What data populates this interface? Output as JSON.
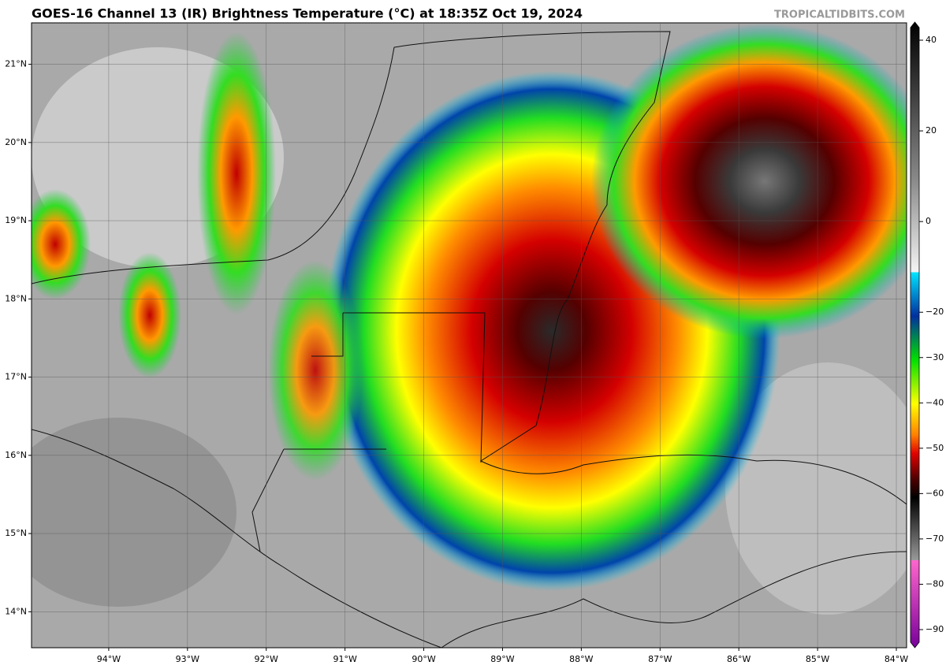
{
  "header": {
    "title": "GOES-16 Channel 13 (IR) Brightness Temperature (°C) at 18:35Z Oct 19, 2024",
    "credit": "TROPICALTIDBITS.COM"
  },
  "map": {
    "xlim": [
      -94.98,
      -83.87
    ],
    "ylim": [
      13.54,
      21.53
    ],
    "lat_labels": [
      {
        "value": 21,
        "label": "21°N"
      },
      {
        "value": 20,
        "label": "20°N"
      },
      {
        "value": 19,
        "label": "19°N"
      },
      {
        "value": 18,
        "label": "18°N"
      },
      {
        "value": 17,
        "label": "17°N"
      },
      {
        "value": 16,
        "label": "16°N"
      },
      {
        "value": 15,
        "label": "15°N"
      },
      {
        "value": 14,
        "label": "14°N"
      }
    ],
    "lon_labels": [
      {
        "value": -94,
        "label": "94°W"
      },
      {
        "value": -93,
        "label": "93°W"
      },
      {
        "value": -92,
        "label": "92°W"
      },
      {
        "value": -91,
        "label": "91°W"
      },
      {
        "value": -90,
        "label": "90°W"
      },
      {
        "value": -89,
        "label": "89°W"
      },
      {
        "value": -88,
        "label": "88°W"
      },
      {
        "value": -87,
        "label": "87°W"
      },
      {
        "value": -86,
        "label": "86°W"
      },
      {
        "value": -85,
        "label": "85°W"
      },
      {
        "value": -84,
        "label": "84°W"
      }
    ]
  },
  "colorbar": {
    "ylim": [
      -94,
      44
    ],
    "ticks": [
      {
        "value": 40,
        "label": "40"
      },
      {
        "value": 20,
        "label": "20"
      },
      {
        "value": 0,
        "label": "0"
      },
      {
        "value": -20,
        "label": "−20"
      },
      {
        "value": -30,
        "label": "−30"
      },
      {
        "value": -40,
        "label": "−40"
      },
      {
        "value": -50,
        "label": "−50"
      },
      {
        "value": -60,
        "label": "−60"
      },
      {
        "value": -70,
        "label": "−70"
      },
      {
        "value": -80,
        "label": "−80"
      },
      {
        "value": -90,
        "label": "−90"
      }
    ]
  }
}
